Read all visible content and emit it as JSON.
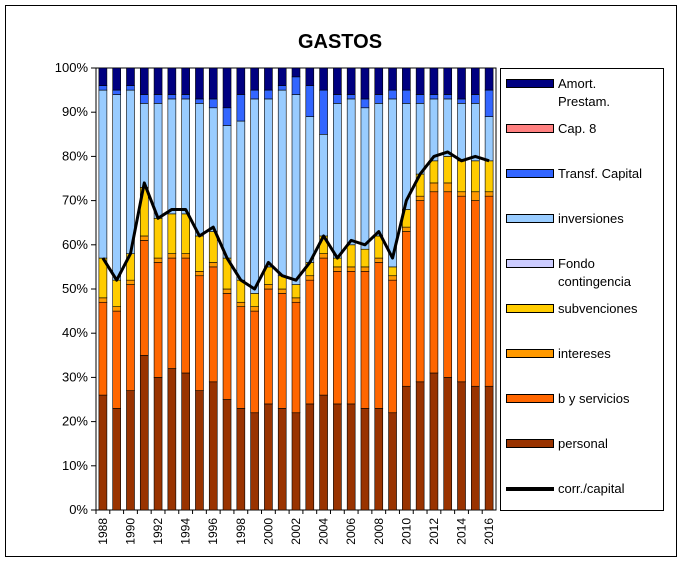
{
  "chart_data": {
    "type": "stacked-bar",
    "title": "GASTOS",
    "categories": [
      "1988",
      null,
      "1990",
      null,
      "1992",
      null,
      "1994",
      null,
      "1996",
      null,
      "1998",
      null,
      "2000",
      null,
      "2002",
      null,
      "2004",
      null,
      "2006",
      null,
      "2008",
      null,
      "2010",
      null,
      "2012",
      null,
      "2014",
      null,
      "2016"
    ],
    "ylim": [
      0,
      100
    ],
    "yticks": [
      {
        "value": 0,
        "label": "0%"
      },
      {
        "value": 10,
        "label": "10%"
      },
      {
        "value": 20,
        "label": "20%"
      },
      {
        "value": 30,
        "label": "30%"
      },
      {
        "value": 40,
        "label": "40%"
      },
      {
        "value": 50,
        "label": "50%"
      },
      {
        "value": 60,
        "label": "60%"
      },
      {
        "value": 70,
        "label": "70%"
      },
      {
        "value": 80,
        "label": "80%"
      },
      {
        "value": 90,
        "label": "90%"
      },
      {
        "value": 100,
        "label": "100%"
      }
    ],
    "legend": "right",
    "series": [
      {
        "name": "personal",
        "color": "#993300",
        "values": [
          26,
          23,
          27,
          35,
          30,
          32,
          31,
          27,
          29,
          25,
          23,
          22,
          24,
          23,
          22,
          24,
          26,
          24,
          24,
          23,
          23,
          22,
          28,
          29,
          31,
          30,
          29,
          28,
          28
        ]
      },
      {
        "name": "b y servicios",
        "color": "#ff6600",
        "values": [
          21,
          22,
          24,
          26,
          26,
          25,
          26,
          26,
          26,
          24,
          23,
          23,
          26,
          26,
          25,
          28,
          31,
          30,
          30,
          31,
          33,
          30,
          35,
          41,
          41,
          42,
          42,
          42,
          43
        ]
      },
      {
        "name": "intereses",
        "color": "#ff9900",
        "values": [
          1,
          1,
          1,
          1,
          1,
          1,
          1,
          1,
          1,
          1,
          1,
          1,
          1,
          1,
          1,
          1,
          1,
          1,
          1,
          1,
          1,
          1,
          1,
          1,
          2,
          2,
          1,
          2,
          1
        ]
      },
      {
        "name": "subvenciones",
        "color": "#ffcc00",
        "values": [
          9,
          6,
          6,
          11,
          9,
          9,
          9,
          8,
          7,
          7,
          5,
          3,
          4,
          3,
          3,
          3,
          4,
          2,
          5,
          4,
          5,
          2,
          4,
          5,
          5,
          6,
          7,
          7,
          7
        ]
      },
      {
        "name": "Fondo contingencia",
        "color": "#ccccff",
        "values": [
          0,
          0,
          0,
          0,
          0,
          0,
          0,
          0,
          0,
          0,
          0,
          0,
          0,
          0,
          0,
          0,
          0,
          0,
          0,
          0,
          0,
          0,
          0,
          0,
          0,
          0,
          0,
          0,
          0
        ]
      },
      {
        "name": "inversiones",
        "color": "#99ccff",
        "values": [
          38,
          42,
          37,
          19,
          26,
          26,
          26,
          30,
          28,
          30,
          36,
          44,
          38,
          42,
          43,
          33,
          23,
          35,
          33,
          32,
          30,
          38,
          24,
          16,
          14,
          13,
          13,
          13,
          10
        ]
      },
      {
        "name": "Transf. Capital",
        "color": "#3366ff",
        "values": [
          1,
          1,
          1,
          2,
          2,
          1,
          1,
          1,
          2,
          4,
          6,
          2,
          2,
          1,
          4,
          7,
          10,
          2,
          1,
          2,
          2,
          2,
          3,
          2,
          1,
          1,
          1,
          2,
          6
        ]
      },
      {
        "name": "Cap. 8",
        "color": "#ff8080",
        "values": [
          0,
          0,
          0,
          0,
          0,
          0,
          0,
          0,
          0,
          0,
          0,
          0,
          0,
          0,
          0,
          0,
          0,
          0,
          0,
          0,
          0,
          0,
          0,
          0,
          0,
          0,
          0,
          0,
          0
        ]
      },
      {
        "name": "Amort. Prestam.",
        "color": "#000080",
        "values": [
          4,
          5,
          4,
          6,
          6,
          6,
          6,
          7,
          7,
          9,
          6,
          5,
          5,
          4,
          2,
          4,
          5,
          6,
          6,
          7,
          6,
          5,
          5,
          6,
          6,
          6,
          7,
          6,
          5
        ]
      },
      {
        "name": "corr./capital",
        "type": "line",
        "color": "#000000",
        "values": [
          57,
          52,
          58,
          74,
          66,
          68,
          68,
          62,
          64,
          57,
          52,
          50,
          56,
          53,
          52,
          56,
          62,
          57,
          61,
          60,
          63,
          57,
          70,
          76,
          80,
          81,
          79,
          80,
          79
        ]
      }
    ]
  }
}
